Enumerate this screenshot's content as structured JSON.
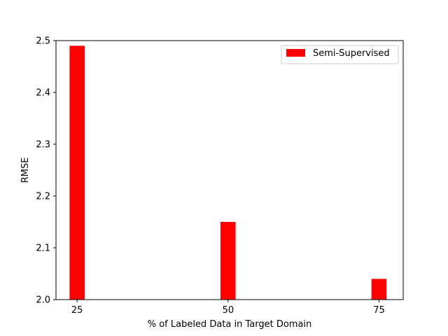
{
  "chart_data": {
    "type": "bar",
    "xlabel": "% of Labeled Data in Target Domain",
    "ylabel": "RMSE",
    "categories": [
      "25",
      "50",
      "75"
    ],
    "x": [
      25,
      50,
      75
    ],
    "series": [
      {
        "name": "Semi-Supervised",
        "color": "#ff0000",
        "values": [
          2.49,
          2.15,
          2.04
        ]
      }
    ],
    "xlim": [
      21.5,
      79
    ],
    "ylim": [
      2.0,
      2.5
    ],
    "yticks": [
      "2.0",
      "2.1",
      "2.2",
      "2.3",
      "2.4",
      "2.5"
    ],
    "grid": false,
    "legend_position": "top-right"
  }
}
